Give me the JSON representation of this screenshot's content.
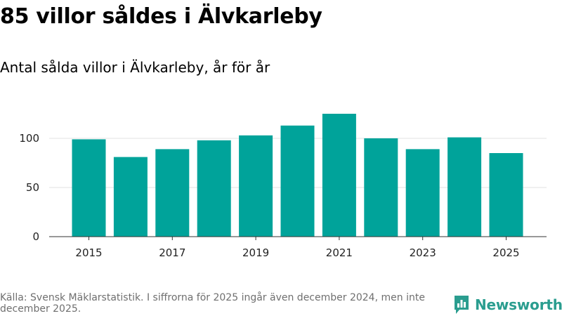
{
  "title": "85 villor såldes i Älvkarleby",
  "subtitle": "Antal sålda villor i Älvkarleby, år för år",
  "source": "Källa: Svensk Mäklarstatistik. I siffrorna för 2025 ingår även december 2024, men inte december 2025.",
  "brand": {
    "name": "Newsworthy",
    "icon": "newsworthy-logo-icon",
    "color": "#2a9d8f"
  },
  "chart_data": {
    "type": "bar",
    "categories": [
      "2015",
      "2016",
      "2017",
      "2018",
      "2019",
      "2020",
      "2021",
      "2022",
      "2023",
      "2024",
      "2025"
    ],
    "values": [
      99,
      81,
      89,
      98,
      103,
      113,
      125,
      100,
      89,
      101,
      85
    ],
    "xtick_labels": [
      "2015",
      "2017",
      "2019",
      "2021",
      "2023",
      "2025"
    ],
    "yticks": [
      0,
      50,
      100
    ],
    "ylim": [
      0,
      130
    ],
    "grid": true,
    "bar_color": "#00a39a",
    "title": "85 villor såldes i Älvkarleby",
    "xlabel": "",
    "ylabel": ""
  }
}
